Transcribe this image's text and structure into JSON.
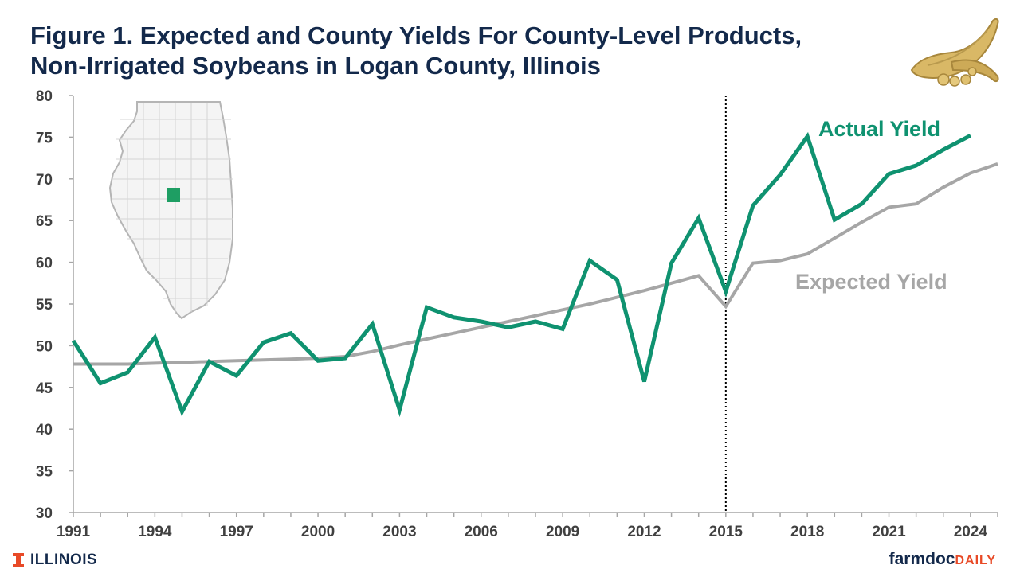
{
  "title": {
    "line1": "Figure 1.  Expected and County Yields For County-Level Products,",
    "line2": "Non-Irrigated Soybeans in Logan County, Illinois"
  },
  "footer": {
    "left_logo": "ILLINOIS",
    "right_logo_a": "farmdoc",
    "right_logo_b": "DAILY"
  },
  "colors": {
    "actual": "#0F9270",
    "expected": "#A6A6A6",
    "title": "#13294B",
    "map_highlight": "#1E9E63"
  },
  "chart_data": {
    "type": "line",
    "xlabel": "",
    "ylabel": "",
    "ylim": [
      30,
      80
    ],
    "xlim": [
      1991,
      2025
    ],
    "y_ticks": [
      "30",
      "35",
      "40",
      "45",
      "50",
      "55",
      "60",
      "65",
      "70",
      "75",
      "80"
    ],
    "x_tick_labels": [
      "1991",
      "1994",
      "1997",
      "2000",
      "2003",
      "2006",
      "2009",
      "2012",
      "2015",
      "2018",
      "2021",
      "2024"
    ],
    "vertical_marker_year": 2015,
    "series": [
      {
        "name": "Actual Yield",
        "x": [
          1991,
          1992,
          1993,
          1994,
          1995,
          1996,
          1997,
          1998,
          1999,
          2000,
          2001,
          2002,
          2003,
          2004,
          2005,
          2006,
          2007,
          2008,
          2009,
          2010,
          2011,
          2012,
          2013,
          2014,
          2015,
          2016,
          2017,
          2018,
          2019,
          2020,
          2021,
          2022,
          2023,
          2024
        ],
        "values": [
          50.6,
          45.5,
          46.8,
          51.0,
          42.1,
          48.1,
          46.4,
          50.4,
          51.5,
          48.2,
          48.5,
          52.6,
          42.3,
          54.6,
          53.4,
          52.9,
          52.2,
          52.9,
          52.0,
          60.2,
          57.9,
          45.7,
          59.9,
          65.3,
          56.5,
          66.8,
          70.5,
          75.1,
          65.1,
          67.0,
          70.6,
          71.6,
          73.5,
          75.2
        ]
      },
      {
        "name": "Expected Yield",
        "x": [
          1991,
          1992,
          1993,
          1994,
          1995,
          1996,
          1997,
          1998,
          1999,
          2000,
          2001,
          2002,
          2003,
          2004,
          2005,
          2006,
          2007,
          2008,
          2009,
          2010,
          2011,
          2012,
          2013,
          2014,
          2015,
          2016,
          2017,
          2018,
          2019,
          2020,
          2021,
          2022,
          2023,
          2024,
          2025
        ],
        "values": [
          47.8,
          47.8,
          47.8,
          47.9,
          48.0,
          48.1,
          48.2,
          48.3,
          48.4,
          48.5,
          48.7,
          49.3,
          50.1,
          50.8,
          51.5,
          52.2,
          52.9,
          53.6,
          54.3,
          55.0,
          55.8,
          56.6,
          57.5,
          58.4,
          54.7,
          59.9,
          60.2,
          61.0,
          62.9,
          64.8,
          66.6,
          67.0,
          69.0,
          70.7,
          71.8
        ]
      }
    ]
  }
}
